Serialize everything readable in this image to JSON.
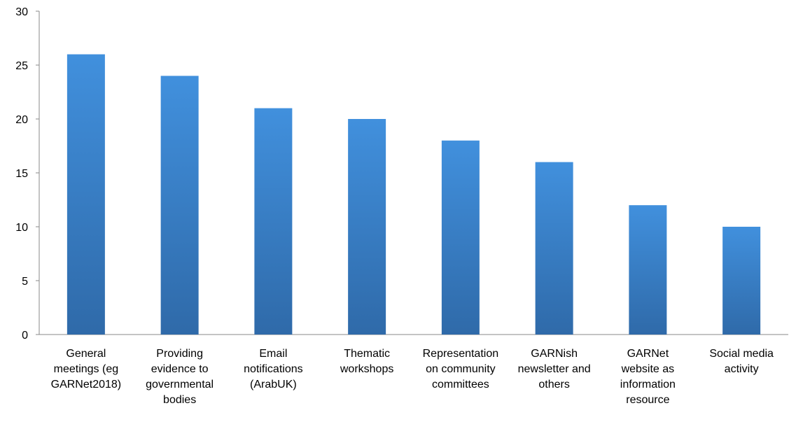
{
  "chart_data": {
    "type": "bar",
    "title": "",
    "xlabel": "",
    "ylabel": "",
    "ylim": [
      0,
      30
    ],
    "yticks": [
      "0",
      "5",
      "10",
      "15",
      "20",
      "25",
      "30"
    ],
    "grid": false,
    "legend": "none",
    "bar_color": "#3f88d4",
    "categories": [
      "General meetings (eg GARNet2018)",
      "Providing evidence to governmental bodies",
      "Email notifications (ArabUK)",
      "Thematic workshops",
      "Representation on community committees",
      "GARNish newsletter and others",
      "GARNet website as information resource",
      "Social media activity"
    ],
    "category_label_lines": [
      [
        "General",
        "meetings (eg",
        "GARNet2018)"
      ],
      [
        "Providing",
        "evidence to",
        "governmental",
        "bodies"
      ],
      [
        "Email",
        "notifications",
        "(ArabUK)"
      ],
      [
        "Thematic",
        "workshops"
      ],
      [
        "Representation",
        "on community",
        "committees"
      ],
      [
        "GARNish",
        "newsletter and",
        "others"
      ],
      [
        "GARNet",
        "website as",
        "information",
        "resource"
      ],
      [
        "Social media",
        "activity"
      ]
    ],
    "values": [
      26,
      24,
      21,
      20,
      18,
      16,
      12,
      10
    ]
  }
}
